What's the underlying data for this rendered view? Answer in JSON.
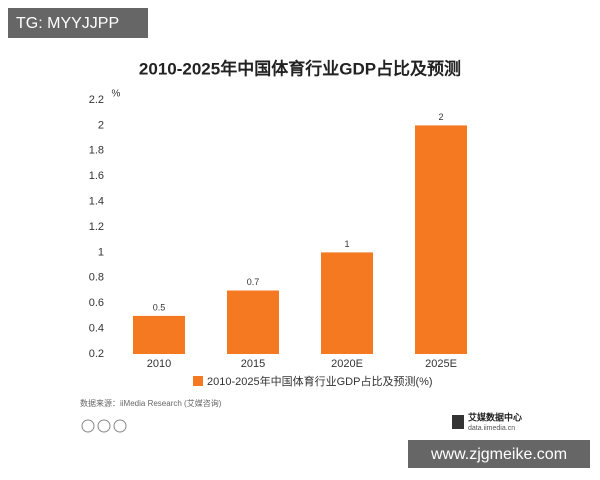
{
  "chart_data": {
    "type": "bar",
    "title": "2010-2025年中国体育行业GDP占比及预测",
    "ylabel": "%",
    "categories": [
      "2010",
      "2015",
      "2020E",
      "2025E"
    ],
    "series": [
      {
        "name": "2010-2025年中国体育行业GDP占比及预测(%)",
        "color": "#f47920",
        "values": [
          0.5,
          0.7,
          1,
          2
        ]
      }
    ],
    "ylim": [
      0.2,
      2.2
    ],
    "yticks": [
      0.2,
      0.4,
      0.6,
      0.8,
      1,
      1.2,
      1.4,
      1.6,
      1.8,
      2,
      2.2
    ],
    "grid": false
  },
  "source": "数据来源：iiMedia Research (艾媒咨询)",
  "logo": {
    "name": "艾媒数据中心",
    "url": "data.iimedia.cn"
  },
  "watermark_top": "TG: MYYJJPP",
  "watermark_bottom": "www.zjgmeike.com"
}
